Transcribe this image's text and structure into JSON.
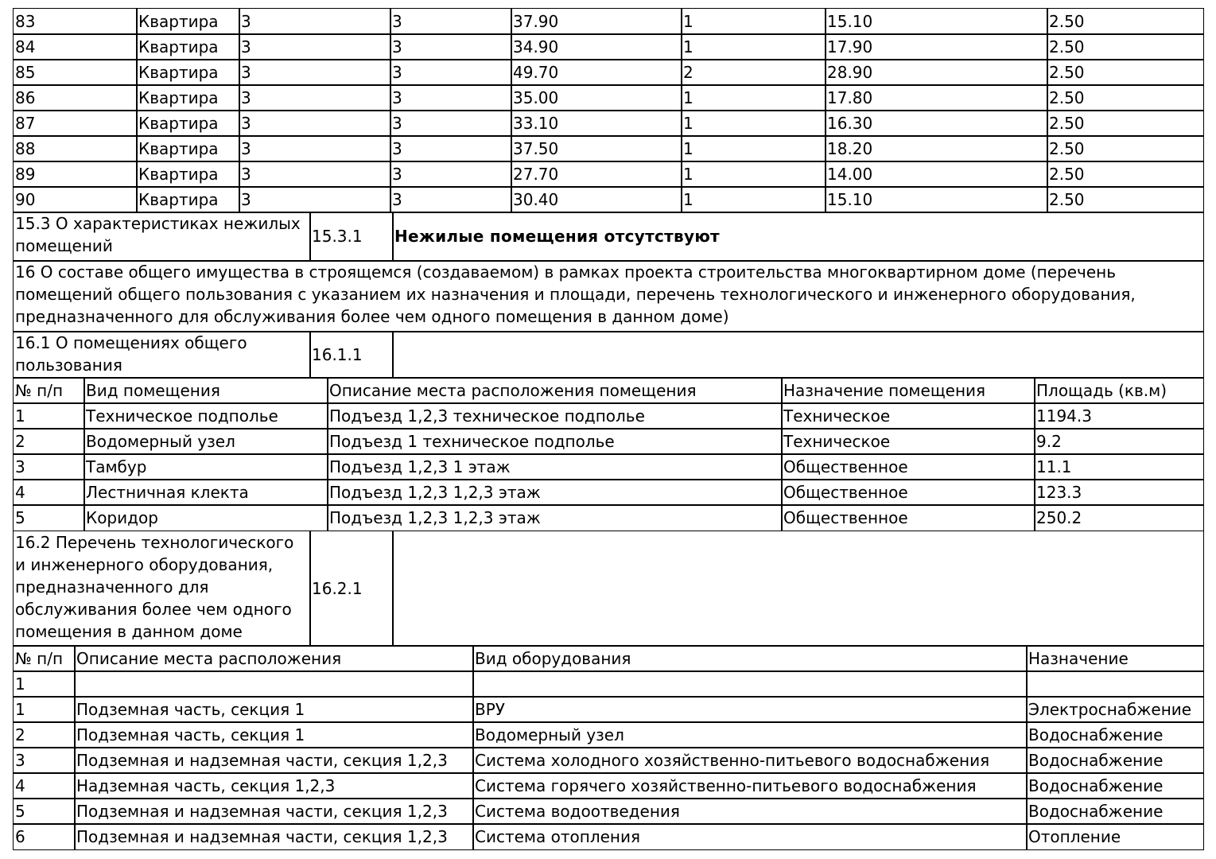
{
  "apartments": {
    "rows": [
      [
        "83",
        "Квартира",
        "3",
        "3",
        "37.90",
        "1",
        "15.10",
        "2.50"
      ],
      [
        "84",
        "Квартира",
        "3",
        "3",
        "34.90",
        "1",
        "17.90",
        "2.50"
      ],
      [
        "85",
        "Квартира",
        "3",
        "3",
        "49.70",
        "2",
        "28.90",
        "2.50"
      ],
      [
        "86",
        "Квартира",
        "3",
        "3",
        "35.00",
        "1",
        "17.80",
        "2.50"
      ],
      [
        "87",
        "Квартира",
        "3",
        "3",
        "33.10",
        "1",
        "16.30",
        "2.50"
      ],
      [
        "88",
        "Квартира",
        "3",
        "3",
        "37.50",
        "1",
        "18.20",
        "2.50"
      ],
      [
        "89",
        "Квартира",
        "3",
        "3",
        "27.70",
        "1",
        "14.00",
        "2.50"
      ],
      [
        "90",
        "Квартира",
        "3",
        "3",
        "30.40",
        "1",
        "15.10",
        "2.50"
      ]
    ]
  },
  "section_15_3": {
    "label": "15.3 О характеристиках нежилых помещений",
    "code": "15.3.1",
    "text": "Нежилые помещения отсутствуют"
  },
  "section_16": {
    "text": "16 О составе общего имущества в строящемся (создаваемом) в рамках проекта строительства многоквартирном доме (перечень помещений общего пользования с указанием их назначения и площади, перечень технологического и инженерного оборудования, предназначенного для обслуживания более чем одного помещения в данном доме)"
  },
  "section_16_1": {
    "label": "16.1 О помещениях общего пользования",
    "code": "16.1.1"
  },
  "premises": {
    "header": [
      "№ п/п",
      "Вид помещения",
      "Описание места расположения помещения",
      "Назначение помещения",
      "Площадь (кв.м)"
    ],
    "rows": [
      [
        "1",
        "Техническое подполье",
        "Подъезд 1,2,3 техническое подполье",
        "Техническое",
        "1194.3"
      ],
      [
        "2",
        "Водомерный узел",
        "Подъезд 1 техническое подполье",
        "Техническое",
        "9.2"
      ],
      [
        "3",
        "Тамбур",
        "Подъезд 1,2,3 1 этаж",
        "Общественное",
        "11.1"
      ],
      [
        "4",
        "Лестничная клекта",
        "Подъезд 1,2,3 1,2,3 этаж",
        "Общественное",
        "123.3"
      ],
      [
        "5",
        "Коридор",
        "Подъезд 1,2,3 1,2,3 этаж",
        "Общественное",
        "250.2"
      ]
    ]
  },
  "section_16_2": {
    "label": "16.2 Перечень технологического и инженерного оборудования, предназначенного для обслуживания более чем одного помещения в данном доме",
    "code": "16.2.1"
  },
  "equipment": {
    "header": [
      "№ п/п",
      "Описание места расположения",
      "Вид оборудования",
      "Назначение"
    ],
    "rows": [
      [
        "1"
      ],
      [
        "1",
        "Подземная часть, секция 1",
        "ВРУ",
        "Электроснабжение"
      ],
      [
        "2",
        "Подземная часть, секция 1",
        "Водомерный узел",
        "Водоснабжение"
      ],
      [
        "3",
        "Подземная и надземная части, секция 1,2,3",
        "Система холодного хозяйственно-питьевого водоснабжения",
        "Водоснабжение"
      ],
      [
        "4",
        "Надземная часть, секция 1,2,3",
        "Система горячего хозяйственно-питьевого водоснабжения",
        "Водоснабжение"
      ],
      [
        "5",
        "Подземная и надземная части, секция 1,2,3",
        "Система водоотведения",
        "Водоснабжение"
      ],
      [
        "6",
        "Подземная и надземная части, секция 1,2,3",
        "Система отопления",
        "Отопление"
      ]
    ]
  }
}
